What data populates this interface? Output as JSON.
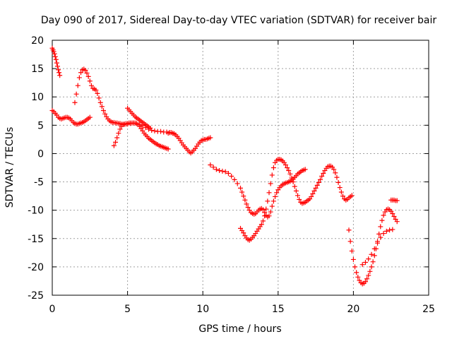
{
  "chart_data": {
    "type": "scatter",
    "title": "Day 090 of 2017, Sidereal Day-to-day VTEC variation (SDTVAR) for receiver bair",
    "xlabel": "GPS time / hours",
    "ylabel": "SDTVAR / TECUs",
    "xlim": [
      0,
      25
    ],
    "ylim": [
      -25,
      20
    ],
    "xticks": [
      "0",
      "5",
      "10",
      "15",
      "20",
      "25"
    ],
    "yticks": [
      "20",
      "15",
      "10",
      "5",
      "0",
      "-5",
      "-10",
      "-15",
      "-20",
      "-25"
    ],
    "grid": true,
    "legend": "none",
    "marker": "plus",
    "color": "#ff0000",
    "series": [
      {
        "x": [
          0.0,
          0.05,
          0.1,
          0.15,
          0.2,
          0.25,
          0.3,
          0.35,
          0.4,
          0.45,
          0.5
        ],
        "y": [
          18.6,
          18.3,
          18.0,
          17.6,
          17.1,
          16.6,
          16.0,
          15.4,
          14.8,
          14.3,
          13.8
        ]
      },
      {
        "x": [
          0.0,
          0.1,
          0.2,
          0.3,
          0.4,
          0.5,
          0.6,
          0.7,
          0.8,
          0.9,
          1.0,
          1.1,
          1.2,
          1.3,
          1.4,
          1.5,
          1.6,
          1.7,
          1.8,
          1.9,
          2.0,
          2.1,
          2.2,
          2.3,
          2.4,
          2.5
        ],
        "y": [
          7.6,
          7.4,
          7.1,
          6.8,
          6.4,
          6.2,
          6.1,
          6.2,
          6.3,
          6.4,
          6.4,
          6.3,
          6.1,
          5.8,
          5.5,
          5.3,
          5.2,
          5.2,
          5.3,
          5.4,
          5.5,
          5.6,
          5.8,
          6.0,
          6.2,
          6.4
        ]
      },
      {
        "x": [
          1.5,
          1.6,
          1.7,
          1.8,
          1.9,
          2.0,
          2.1,
          2.2,
          2.3,
          2.4,
          2.5,
          2.6,
          2.7,
          2.8,
          2.9,
          3.0,
          3.1,
          3.2,
          3.3,
          3.4,
          3.5,
          3.6,
          3.7,
          3.8,
          3.9,
          4.0,
          4.1,
          4.2,
          4.3,
          4.4,
          4.5,
          4.6,
          4.7,
          4.8,
          4.9,
          5.0,
          5.2,
          5.4,
          5.6,
          5.8,
          6.0,
          6.2,
          6.4,
          6.6,
          6.8,
          7.0,
          7.2,
          7.4,
          7.6,
          7.8,
          8.0
        ],
        "y": [
          9.0,
          10.5,
          12.0,
          13.4,
          14.3,
          14.8,
          14.9,
          14.7,
          14.2,
          13.6,
          12.8,
          12.0,
          11.5,
          11.4,
          11.2,
          10.6,
          9.8,
          9.0,
          8.3,
          7.6,
          7.0,
          6.5,
          6.1,
          5.8,
          5.6,
          5.5,
          5.5,
          5.4,
          5.4,
          5.3,
          5.3,
          5.2,
          5.2,
          5.2,
          5.2,
          5.2,
          5.3,
          5.4,
          5.3,
          5.1,
          4.9,
          4.6,
          4.3,
          4.1,
          4.0,
          3.9,
          3.9,
          3.8,
          3.8,
          3.7,
          3.6
        ]
      },
      {
        "x": [
          4.1,
          4.2,
          4.3,
          4.4,
          4.5,
          4.6,
          4.7,
          4.8,
          4.9,
          5.0,
          5.1,
          5.2,
          5.3,
          5.4,
          5.5,
          5.6,
          5.7,
          5.8,
          5.9,
          6.0,
          6.1,
          6.2,
          6.3,
          6.4,
          6.5,
          6.6,
          6.7,
          6.8,
          6.9,
          7.0,
          7.1,
          7.2,
          7.3,
          7.4,
          7.5,
          7.6,
          7.7
        ],
        "y": [
          1.4,
          2.0,
          2.8,
          3.6,
          4.3,
          4.8,
          5.1,
          5.2,
          5.3,
          5.3,
          5.4,
          5.4,
          5.4,
          5.4,
          5.4,
          5.3,
          5.1,
          4.8,
          4.4,
          4.0,
          3.6,
          3.3,
          3.0,
          2.7,
          2.5,
          2.3,
          2.1,
          1.9,
          1.7,
          1.6,
          1.4,
          1.3,
          1.2,
          1.1,
          1.0,
          0.9,
          0.8
        ]
      },
      {
        "x": [
          5.0,
          5.1,
          5.2,
          5.3,
          5.4,
          5.5,
          5.6,
          5.7,
          5.8,
          5.9,
          6.0,
          6.1,
          6.2,
          6.3,
          6.4,
          6.5
        ],
        "y": [
          8.0,
          7.7,
          7.4,
          7.1,
          6.8,
          6.5,
          6.3,
          6.1,
          5.9,
          5.7,
          5.5,
          5.3,
          5.1,
          4.9,
          4.7,
          4.5
        ]
      },
      {
        "x": [
          7.7,
          7.8,
          7.9,
          8.0,
          8.1,
          8.2,
          8.3,
          8.4,
          8.5,
          8.6,
          8.7,
          8.8,
          8.9,
          9.0,
          9.1,
          9.2,
          9.3,
          9.4,
          9.5,
          9.6,
          9.7,
          9.8,
          9.9,
          10.0,
          10.1,
          10.2,
          10.3,
          10.4,
          10.5
        ],
        "y": [
          3.6,
          3.7,
          3.7,
          3.6,
          3.5,
          3.3,
          3.0,
          2.7,
          2.3,
          1.9,
          1.5,
          1.2,
          0.9,
          0.6,
          0.3,
          0.1,
          0.3,
          0.6,
          0.9,
          1.3,
          1.7,
          2.0,
          2.3,
          2.4,
          2.5,
          2.5,
          2.6,
          2.7,
          2.8
        ]
      },
      {
        "x": [
          10.5,
          10.7,
          10.9,
          11.1,
          11.3,
          11.5,
          11.7,
          11.9,
          12.1,
          12.3,
          12.5,
          12.6,
          12.7,
          12.8,
          12.9,
          13.0,
          13.1,
          13.2,
          13.3,
          13.4,
          13.5,
          13.6,
          13.7,
          13.8,
          13.9,
          14.0,
          14.1,
          14.2,
          14.3,
          14.4,
          14.5,
          14.6,
          14.7,
          14.8,
          14.9,
          15.0,
          15.1,
          15.2,
          15.3,
          15.4,
          15.5,
          15.6,
          15.7,
          15.8,
          15.9,
          16.0,
          16.1,
          16.2,
          16.3,
          16.4,
          16.5,
          16.6,
          16.7,
          16.8
        ],
        "y": [
          -2.0,
          -2.4,
          -2.8,
          -3.0,
          -3.1,
          -3.2,
          -3.5,
          -4.0,
          -4.6,
          -5.3,
          -6.1,
          -6.8,
          -7.5,
          -8.2,
          -8.9,
          -9.5,
          -10.0,
          -10.4,
          -10.6,
          -10.7,
          -10.6,
          -10.3,
          -10.0,
          -9.8,
          -9.7,
          -9.9,
          -10.4,
          -10.9,
          -11.2,
          -11.0,
          -10.3,
          -9.3,
          -8.4,
          -7.6,
          -6.9,
          -6.4,
          -6.0,
          -5.7,
          -5.5,
          -5.3,
          -5.2,
          -5.1,
          -5.0,
          -4.9,
          -4.7,
          -4.5,
          -4.2,
          -3.9,
          -3.6,
          -3.4,
          -3.2,
          -3.0,
          -2.9,
          -2.8
        ]
      },
      {
        "x": [
          12.5,
          12.6,
          12.7,
          12.8,
          12.9,
          13.0,
          13.1,
          13.2,
          13.3,
          13.4,
          13.5,
          13.6,
          13.7,
          13.8,
          13.9,
          14.0,
          14.1,
          14.2,
          14.3,
          14.4,
          14.5,
          14.6,
          14.7,
          14.8,
          14.9,
          15.0,
          15.1,
          15.2,
          15.3,
          15.4,
          15.5,
          15.6,
          15.7,
          15.8,
          15.9,
          16.0,
          16.1,
          16.2,
          16.3,
          16.4,
          16.5,
          16.6,
          16.7,
          16.8,
          16.9,
          17.0,
          17.1,
          17.2,
          17.3,
          17.4,
          17.5,
          17.6,
          17.7,
          17.8,
          17.9,
          18.0,
          18.1,
          18.2,
          18.3,
          18.4,
          18.5,
          18.6,
          18.7,
          18.8,
          18.9,
          19.0,
          19.1,
          19.2,
          19.3,
          19.4,
          19.5,
          19.6,
          19.7,
          19.8,
          19.9
        ],
        "y": [
          -13.2,
          -13.6,
          -14.0,
          -14.5,
          -14.9,
          -15.2,
          -15.3,
          -15.1,
          -14.8,
          -14.5,
          -14.1,
          -13.7,
          -13.3,
          -12.9,
          -12.5,
          -11.9,
          -11.0,
          -9.8,
          -8.4,
          -6.9,
          -5.3,
          -3.8,
          -2.5,
          -1.6,
          -1.2,
          -1.0,
          -1.0,
          -1.1,
          -1.3,
          -1.6,
          -2.0,
          -2.5,
          -3.0,
          -3.6,
          -4.3,
          -5.0,
          -5.8,
          -6.6,
          -7.4,
          -8.1,
          -8.6,
          -8.8,
          -8.7,
          -8.6,
          -8.4,
          -8.2,
          -8.0,
          -7.6,
          -7.1,
          -6.6,
          -6.1,
          -5.6,
          -5.1,
          -4.6,
          -4.0,
          -3.5,
          -3.0,
          -2.6,
          -2.3,
          -2.2,
          -2.2,
          -2.4,
          -2.8,
          -3.4,
          -4.2,
          -5.1,
          -6.0,
          -6.8,
          -7.5,
          -8.0,
          -8.2,
          -8.1,
          -7.8,
          -7.6,
          -7.4
        ]
      },
      {
        "x": [
          19.7,
          19.8,
          19.9,
          20.0,
          20.1,
          20.2,
          20.3,
          20.4,
          20.5,
          20.6,
          20.7,
          20.8,
          20.9,
          21.0,
          21.1,
          21.2,
          21.3,
          21.4,
          21.5,
          21.6,
          21.7,
          21.8,
          21.9,
          22.0,
          22.1,
          22.2,
          22.3,
          22.4,
          22.5,
          22.6,
          22.7,
          22.8,
          22.9
        ],
        "y": [
          -13.5,
          -15.5,
          -17.2,
          -18.7,
          -20.0,
          -21.0,
          -21.8,
          -22.4,
          -22.8,
          -23.0,
          -22.9,
          -22.6,
          -22.1,
          -21.5,
          -20.8,
          -20.0,
          -19.1,
          -18.0,
          -16.8,
          -15.5,
          -14.2,
          -12.9,
          -11.8,
          -10.9,
          -10.3,
          -9.9,
          -9.8,
          -9.9,
          -10.2,
          -10.6,
          -11.1,
          -11.6,
          -12.0
        ]
      },
      {
        "x": [
          20.6,
          20.8,
          21.0,
          21.2,
          21.4,
          21.6,
          21.8,
          22.0,
          22.2,
          22.4,
          22.6
        ],
        "y": [
          -19.6,
          -19.2,
          -18.6,
          -17.8,
          -16.8,
          -15.8,
          -14.8,
          -14.1,
          -13.7,
          -13.5,
          -13.4
        ]
      },
      {
        "x": [
          22.5,
          22.6,
          22.7,
          22.8,
          22.9
        ],
        "y": [
          -8.2,
          -8.2,
          -8.2,
          -8.3,
          -8.3
        ]
      }
    ]
  }
}
